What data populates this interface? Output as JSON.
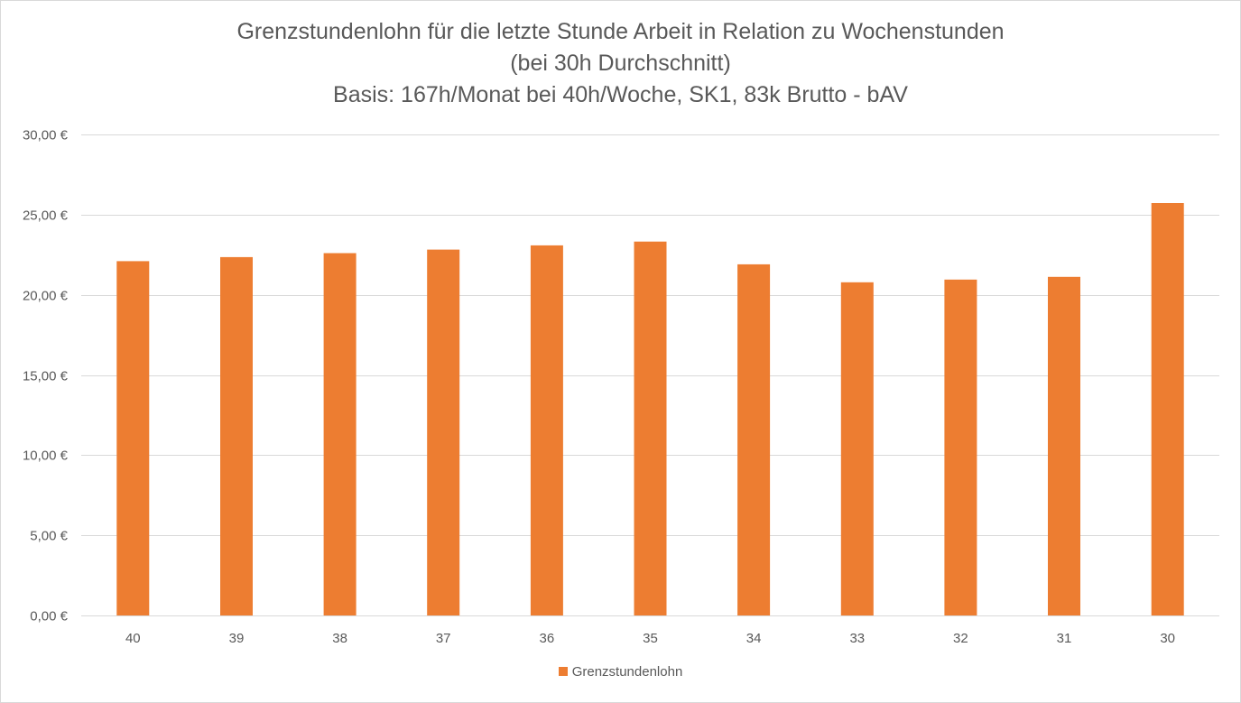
{
  "chart_data": {
    "type": "bar",
    "title_lines": [
      "Grenzstundenlohn  für die letzte Stunde Arbeit in Relation zu Wochenstunden",
      "(bei 30h Durchschnitt)",
      "Basis: 167h/Monat bei 40h/Woche, SK1, 83k Brutto - bAV"
    ],
    "categories": [
      "40",
      "39",
      "38",
      "37",
      "36",
      "35",
      "34",
      "33",
      "32",
      "31",
      "30"
    ],
    "series": [
      {
        "name": "Grenzstundenlohn",
        "color": "#ed7d31",
        "values": [
          22.1,
          22.35,
          22.6,
          22.82,
          23.08,
          23.32,
          21.9,
          20.78,
          20.95,
          21.12,
          25.72
        ]
      }
    ],
    "y_ticks": [
      "0,00 €",
      "5,00 €",
      "10,00 €",
      "15,00 €",
      "20,00 €",
      "25,00 €",
      "30,00 €"
    ],
    "ylim": [
      0,
      30
    ],
    "grid": true,
    "legend_position": "bottom",
    "colors": {
      "gridline": "#d9d9d9",
      "text": "#595959"
    }
  }
}
